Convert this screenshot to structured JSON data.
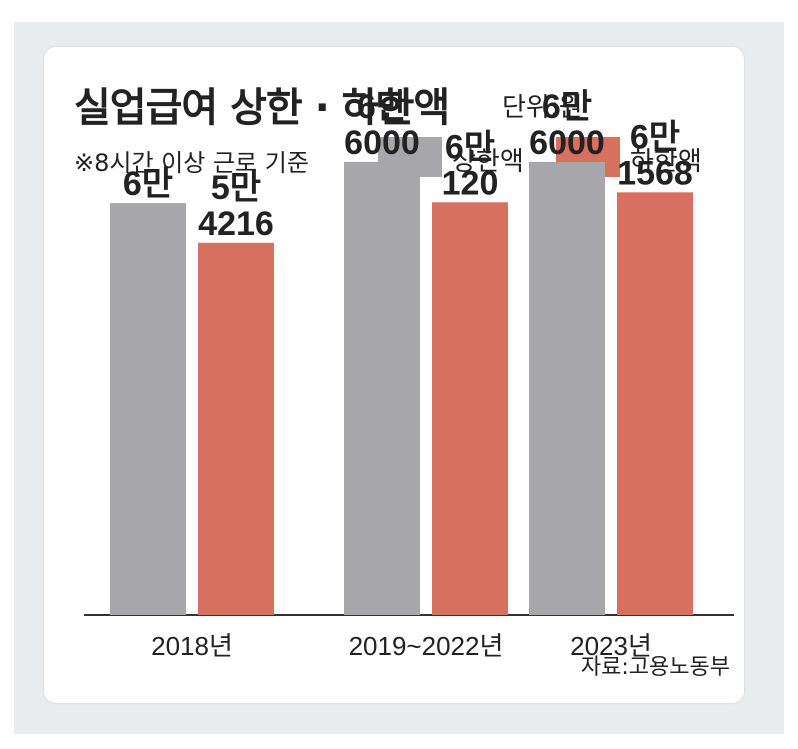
{
  "header": {
    "title": "실업급여 상한 · 하한액",
    "unit": "단위:원",
    "note": "※8시간 이상 근로 기준"
  },
  "legend": [
    {
      "label": "상한액",
      "color": "#a7a7ab"
    },
    {
      "label": "하한액",
      "color": "#d8705f"
    }
  ],
  "source": "자료:고용노동부",
  "chart_data": {
    "type": "bar",
    "title": "실업급여 상한 · 하한액",
    "unit": "원",
    "categories": [
      "2018년",
      "2019~2022년",
      "2023년"
    ],
    "series": [
      {
        "name": "상한액",
        "color": "#a7a7ab",
        "values": [
          60000,
          66000,
          66000
        ],
        "labels": [
          [
            "6만"
          ],
          [
            "6만",
            "6000"
          ],
          [
            "6만",
            "6000"
          ]
        ]
      },
      {
        "name": "하한액",
        "color": "#d8705f",
        "values": [
          54216,
          60120,
          61568
        ],
        "labels": [
          [
            "5만",
            "4216"
          ],
          [
            "6만",
            "120"
          ],
          [
            "6만",
            "1568"
          ]
        ]
      }
    ],
    "ylim": [
      0,
      74000
    ]
  }
}
